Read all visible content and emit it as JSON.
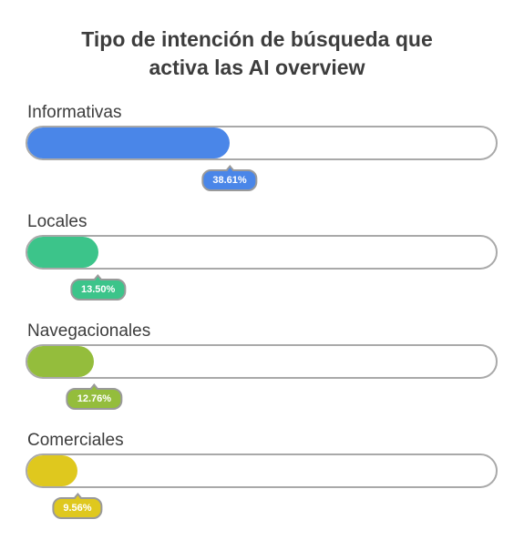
{
  "chart_data": {
    "type": "bar",
    "orientation": "horizontal",
    "title_lines": [
      "Tipo de intención de búsqueda que",
      "activa las AI overview"
    ],
    "categories": [
      "Informativas",
      "Locales",
      "Navegacionales",
      "Comerciales"
    ],
    "values": [
      38.61,
      13.5,
      12.76,
      9.56
    ],
    "value_labels": [
      "38.61%",
      "13.50%",
      "12.76%",
      "9.56%"
    ],
    "xlim": [
      0,
      100
    ],
    "colors": [
      "#4a86e8",
      "#3cc48a",
      "#94bd3c",
      "#dfc81e"
    ],
    "grid": false,
    "legend": "none"
  }
}
